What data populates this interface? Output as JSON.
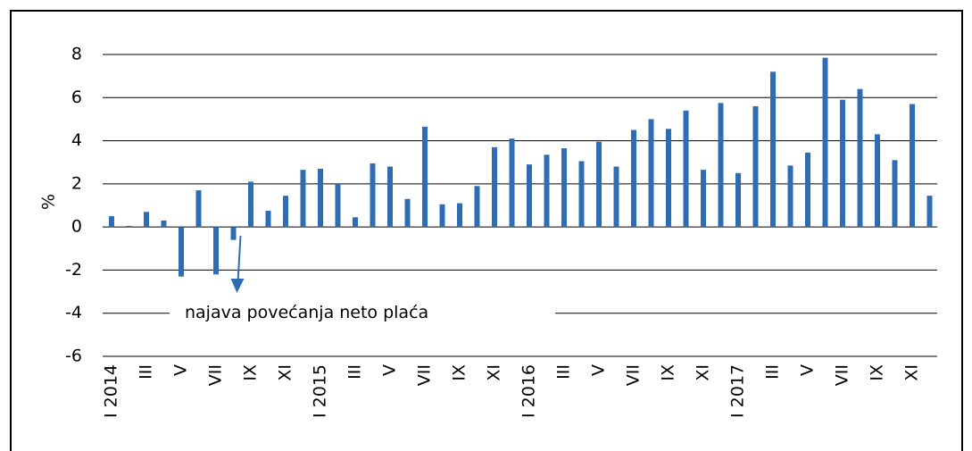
{
  "chart_data": {
    "type": "bar",
    "categories": [
      "I 2014",
      null,
      "III",
      null,
      "V",
      null,
      "VII",
      null,
      "IX",
      null,
      "XI",
      null,
      "I 2015",
      null,
      "III",
      null,
      "V",
      null,
      "VII",
      null,
      "IX",
      null,
      "XI",
      null,
      "I 2016",
      null,
      "III",
      null,
      "V",
      null,
      "VII",
      null,
      "IX",
      null,
      "XI",
      null,
      "I 2017",
      null,
      "III",
      null,
      "V",
      null,
      "VII",
      null,
      "IX",
      null,
      "XI",
      null
    ],
    "values": [
      0.5,
      0.05,
      0.7,
      0.3,
      -2.3,
      1.7,
      -2.2,
      -0.6,
      2.1,
      0.75,
      1.45,
      2.65,
      2.7,
      2.0,
      0.45,
      2.95,
      2.8,
      1.3,
      4.65,
      1.05,
      1.1,
      1.9,
      3.7,
      4.1,
      2.9,
      3.35,
      3.65,
      3.05,
      3.95,
      2.8,
      4.5,
      5.0,
      4.55,
      5.4,
      2.65,
      5.75,
      2.5,
      5.6,
      7.2,
      2.85,
      3.45,
      7.85,
      5.9,
      6.4,
      4.3,
      3.1,
      5.7,
      1.45
    ],
    "color": "#2e6db4",
    "ylabel": "%",
    "annotation": "najava povećanja neto plaća",
    "ylim": [
      -6,
      8
    ],
    "yticks": [
      -6,
      -4,
      -2,
      0,
      2,
      4,
      6,
      8
    ],
    "grid": true
  }
}
